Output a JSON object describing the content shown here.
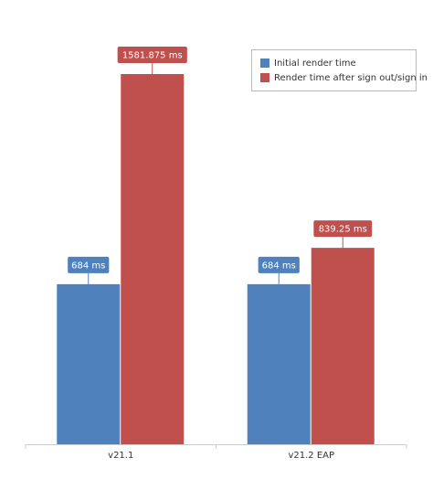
{
  "chart_data": {
    "type": "bar",
    "categories": [
      "v21.1",
      "v21.2 EAP"
    ],
    "series": [
      {
        "name": "Initial render time",
        "color": "#4f81bd",
        "values": [
          684,
          684
        ],
        "value_labels": [
          "684 ms",
          "684 ms"
        ]
      },
      {
        "name": "Render time after sign out/sign in",
        "color": "#c0504d",
        "values": [
          1581.875,
          839.25
        ],
        "value_labels": [
          "1581.875 ms",
          "839.25 ms"
        ]
      }
    ],
    "legend": "top-right"
  }
}
